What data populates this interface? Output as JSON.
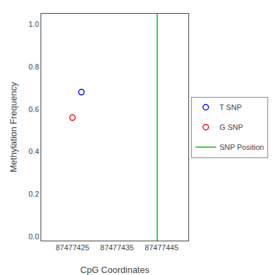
{
  "chart_data": {
    "type": "scatter",
    "xlabel": "CpG Coordinates",
    "ylabel": "Methylation Frequency",
    "series": [
      {
        "name": "T SNP",
        "type": "scatter",
        "color": "blue",
        "marker": "open_circle",
        "x": [
          87477427
        ],
        "values": [
          0.68
        ]
      },
      {
        "name": "G SNP",
        "type": "scatter",
        "color": "red",
        "marker": "open_circle",
        "x": [
          87477425
        ],
        "values": [
          0.56
        ]
      },
      {
        "name": "SNP Position",
        "type": "vline",
        "color": "#00bb00",
        "x": [
          87477444
        ]
      }
    ],
    "xlim": [
      87477418,
      87477451
    ],
    "ylim": [
      -0.02,
      1.05
    ],
    "xticks": [
      87477425,
      87477435,
      87477445
    ],
    "yticks": [
      {
        "value": 0.0,
        "label": "0.0"
      },
      0.2,
      0.4,
      0.6,
      0.8,
      {
        "value": 1.0,
        "label": "1.0"
      }
    ],
    "grid": false,
    "legend": "right"
  }
}
